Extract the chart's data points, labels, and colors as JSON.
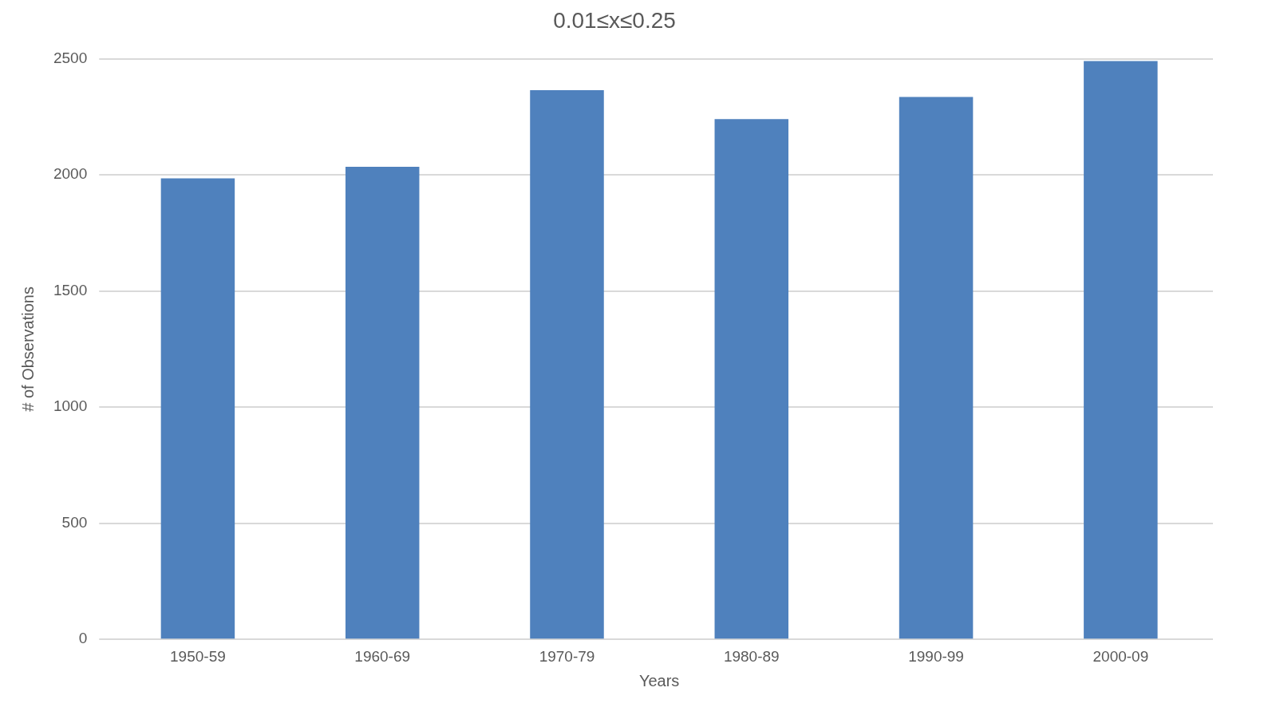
{
  "chart_data": {
    "type": "bar",
    "title": "0.01≤x≤0.25",
    "xlabel": "Years",
    "ylabel": "# of Observations",
    "categories": [
      "1950-59",
      "1960-69",
      "1970-79",
      "1980-89",
      "1990-99",
      "2000-09"
    ],
    "values": [
      1985,
      2035,
      2365,
      2240,
      2335,
      2490
    ],
    "color": "#4f81bd",
    "ylim": [
      0,
      2500
    ],
    "yticks": [
      0,
      500,
      1000,
      1500,
      2000,
      2500
    ],
    "grid": "y"
  }
}
